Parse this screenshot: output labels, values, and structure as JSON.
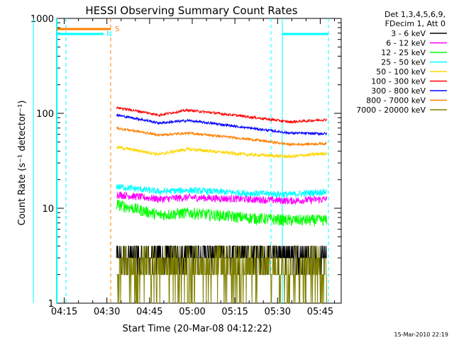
{
  "chart_data": {
    "type": "line",
    "title": "HESSI Observing Summary Count Rates",
    "xlabel": "Start Time (20-Mar-08 04:12:22)",
    "ylabel": "Count Rate (s⁻¹ detector⁻¹)",
    "yscale": "log",
    "ylim": [
      1,
      1000
    ],
    "xlim_minutes": [
      0,
      100
    ],
    "x_ticks": [
      "04:15",
      "04:30",
      "04:45",
      "05:00",
      "05:15",
      "05:30",
      "05:45"
    ],
    "y_ticks": [
      "1",
      "10",
      "100",
      "1000"
    ],
    "legend_header": [
      "Det 1,3,4,5,6,9,",
      "FDecim 1, Att 0"
    ],
    "legend_position": "top-right",
    "timestamp": "15-Mar-2010 22:19",
    "flags": [
      {
        "label": "S",
        "color": "#ff7f00"
      },
      {
        "label": "N",
        "color": "#00ffff"
      }
    ],
    "series": [
      {
        "name": "3 - 6 keV",
        "color": "#000000",
        "values": [
          3,
          3,
          3.5,
          3.5,
          3.2,
          3
        ]
      },
      {
        "name": "6 - 12 keV",
        "color": "#ff00ff",
        "values": [
          14,
          12.5,
          13,
          12.5,
          12,
          12.5
        ]
      },
      {
        "name": "12 - 25 keV",
        "color": "#00ff00",
        "values": [
          11,
          8.5,
          9,
          8,
          7.5,
          7.5
        ]
      },
      {
        "name": "25 - 50 keV",
        "color": "#00ffff",
        "values": [
          17,
          15,
          15.5,
          14.5,
          14,
          15
        ]
      },
      {
        "name": "50 - 100 keV",
        "color": "#ffd700",
        "values": [
          44,
          37,
          42,
          37,
          35,
          38
        ]
      },
      {
        "name": "100 - 300 keV",
        "color": "#ff0000",
        "values": [
          115,
          96,
          108,
          93,
          81,
          86
        ]
      },
      {
        "name": "300 - 800 keV",
        "color": "#0000ff",
        "values": [
          96,
          79,
          84,
          71,
          62,
          61
        ]
      },
      {
        "name": "800 - 7000 keV",
        "color": "#ff7f00",
        "values": [
          70,
          59,
          62,
          54,
          47,
          48
        ]
      },
      {
        "name": "7000 - 20000 keV",
        "color": "#808000",
        "values": [
          2.5,
          2.3,
          2.5,
          2.4,
          2.4,
          2.3
        ]
      }
    ],
    "x_minutes": [
      21,
      36,
      46,
      66,
      82,
      95
    ]
  }
}
